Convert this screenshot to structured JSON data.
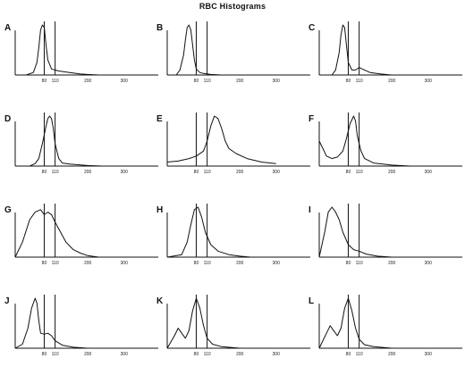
{
  "title": "RBC Histograms",
  "chart_data": [
    {
      "type": "line",
      "panel": "A",
      "x_ticks": [
        "80",
        "110",
        "200",
        "300"
      ],
      "reference_lines": [
        80,
        110
      ],
      "xlim": [
        0,
        350
      ],
      "x": [
        0,
        30,
        50,
        60,
        65,
        70,
        75,
        80,
        85,
        90,
        100,
        120,
        150,
        180,
        200,
        230
      ],
      "values": [
        0,
        0,
        0.05,
        0.25,
        0.55,
        0.9,
        1.0,
        0.95,
        0.6,
        0.3,
        0.12,
        0.08,
        0.05,
        0.02,
        0.01,
        0
      ]
    },
    {
      "type": "line",
      "panel": "B",
      "x_ticks": [
        "80",
        "110",
        "200",
        "300"
      ],
      "reference_lines": [
        80,
        110
      ],
      "xlim": [
        0,
        350
      ],
      "x": [
        0,
        25,
        35,
        45,
        50,
        55,
        60,
        65,
        70,
        75,
        80,
        90,
        100,
        120,
        150
      ],
      "values": [
        0,
        0,
        0.1,
        0.4,
        0.7,
        0.95,
        1.0,
        0.9,
        0.6,
        0.3,
        0.12,
        0.05,
        0.03,
        0.01,
        0
      ]
    },
    {
      "type": "line",
      "panel": "C",
      "x_ticks": [
        "80",
        "110",
        "200",
        "300"
      ],
      "reference_lines": [
        80,
        110
      ],
      "xlim": [
        0,
        350
      ],
      "x": [
        0,
        35,
        45,
        55,
        60,
        65,
        70,
        75,
        80,
        90,
        100,
        110,
        125,
        140,
        170,
        200
      ],
      "values": [
        0,
        0,
        0.1,
        0.45,
        0.8,
        1.0,
        0.95,
        0.6,
        0.25,
        0.1,
        0.1,
        0.15,
        0.1,
        0.05,
        0.02,
        0
      ]
    },
    {
      "type": "line",
      "panel": "D",
      "x_ticks": [
        "80",
        "110",
        "200",
        "300"
      ],
      "reference_lines": [
        80,
        110
      ],
      "xlim": [
        0,
        350
      ],
      "x": [
        0,
        40,
        55,
        65,
        75,
        85,
        90,
        95,
        100,
        105,
        110,
        120,
        130,
        150,
        200,
        240
      ],
      "values": [
        0,
        0,
        0.05,
        0.15,
        0.45,
        0.8,
        0.95,
        1.0,
        0.95,
        0.75,
        0.45,
        0.15,
        0.06,
        0.04,
        0.01,
        0
      ]
    },
    {
      "type": "line",
      "panel": "E",
      "x_ticks": [
        "80",
        "110",
        "200",
        "300"
      ],
      "reference_lines": [
        80,
        110
      ],
      "xlim": [
        0,
        350
      ],
      "x": [
        0,
        30,
        60,
        80,
        100,
        110,
        120,
        130,
        140,
        150,
        160,
        170,
        190,
        220,
        260,
        300
      ],
      "values": [
        0.08,
        0.1,
        0.15,
        0.2,
        0.3,
        0.5,
        0.8,
        1.0,
        0.95,
        0.75,
        0.5,
        0.35,
        0.25,
        0.15,
        0.08,
        0.05
      ]
    },
    {
      "type": "line",
      "panel": "F",
      "x_ticks": [
        "80",
        "110",
        "200",
        "300"
      ],
      "reference_lines": [
        80,
        110
      ],
      "xlim": [
        0,
        350
      ],
      "x": [
        0,
        10,
        20,
        35,
        50,
        65,
        75,
        85,
        95,
        100,
        105,
        115,
        125,
        150,
        200,
        250
      ],
      "values": [
        0.5,
        0.35,
        0.2,
        0.15,
        0.18,
        0.3,
        0.55,
        0.85,
        1.0,
        0.9,
        0.6,
        0.3,
        0.15,
        0.06,
        0.02,
        0
      ]
    },
    {
      "type": "line",
      "panel": "G",
      "x_ticks": [
        "80",
        "110",
        "200",
        "300"
      ],
      "reference_lines": [
        80,
        110
      ],
      "xlim": [
        0,
        350
      ],
      "x": [
        0,
        20,
        40,
        55,
        70,
        80,
        90,
        100,
        110,
        125,
        140,
        160,
        180,
        200,
        230
      ],
      "values": [
        0,
        0.3,
        0.75,
        0.9,
        0.95,
        0.85,
        0.9,
        0.85,
        0.7,
        0.5,
        0.3,
        0.15,
        0.08,
        0.03,
        0
      ]
    },
    {
      "type": "line",
      "panel": "H",
      "x_ticks": [
        "80",
        "110",
        "200",
        "300"
      ],
      "reference_lines": [
        80,
        110
      ],
      "xlim": [
        0,
        350
      ],
      "x": [
        0,
        40,
        55,
        65,
        75,
        85,
        95,
        105,
        120,
        140,
        170,
        200,
        230
      ],
      "values": [
        0,
        0.05,
        0.3,
        0.65,
        0.95,
        1.0,
        0.8,
        0.5,
        0.25,
        0.12,
        0.05,
        0.02,
        0
      ]
    },
    {
      "type": "line",
      "panel": "I",
      "x_ticks": [
        "80",
        "110",
        "200",
        "300"
      ],
      "reference_lines": [
        80,
        110
      ],
      "xlim": [
        0,
        350
      ],
      "x": [
        0,
        15,
        25,
        35,
        45,
        55,
        65,
        80,
        95,
        110,
        130,
        160,
        200
      ],
      "values": [
        0,
        0.5,
        0.9,
        1.0,
        0.9,
        0.75,
        0.5,
        0.25,
        0.15,
        0.12,
        0.06,
        0.02,
        0
      ]
    },
    {
      "type": "line",
      "panel": "J",
      "x_ticks": [
        "80",
        "110",
        "200",
        "300"
      ],
      "reference_lines": [
        80,
        110
      ],
      "xlim": [
        0,
        350
      ],
      "x": [
        0,
        20,
        35,
        45,
        55,
        60,
        65,
        70,
        80,
        90,
        100,
        110,
        130,
        160,
        200
      ],
      "values": [
        0,
        0.08,
        0.4,
        0.8,
        1.0,
        0.9,
        0.55,
        0.3,
        0.28,
        0.3,
        0.25,
        0.15,
        0.06,
        0.02,
        0
      ]
    },
    {
      "type": "line",
      "panel": "K",
      "x_ticks": [
        "80",
        "110",
        "200",
        "300"
      ],
      "reference_lines": [
        80,
        110
      ],
      "xlim": [
        0,
        350
      ],
      "x": [
        0,
        20,
        30,
        40,
        50,
        60,
        70,
        80,
        90,
        100,
        110,
        125,
        150,
        200
      ],
      "values": [
        0,
        0.25,
        0.4,
        0.3,
        0.2,
        0.35,
        0.75,
        1.0,
        0.8,
        0.45,
        0.2,
        0.08,
        0.03,
        0
      ]
    },
    {
      "type": "line",
      "panel": "L",
      "x_ticks": [
        "80",
        "110",
        "200",
        "300"
      ],
      "reference_lines": [
        80,
        110
      ],
      "xlim": [
        0,
        350
      ],
      "x": [
        0,
        20,
        30,
        40,
        50,
        60,
        70,
        80,
        90,
        100,
        110,
        125,
        150,
        200
      ],
      "values": [
        0,
        0.3,
        0.45,
        0.35,
        0.25,
        0.4,
        0.8,
        1.0,
        0.75,
        0.4,
        0.18,
        0.07,
        0.03,
        0
      ]
    }
  ]
}
